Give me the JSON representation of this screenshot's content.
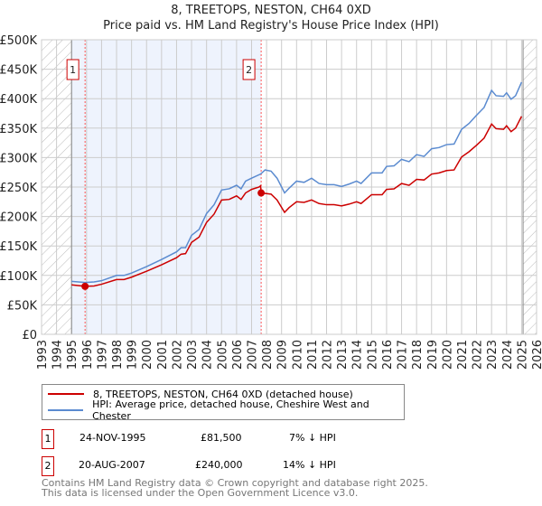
{
  "title": "8, TREETOPS, NESTON, CH64 0XD",
  "subtitle": "Price paid vs. HM Land Registry's House Price Index (HPI)",
  "chart_data": {
    "type": "line",
    "xlim": [
      1993,
      2026
    ],
    "ylim": [
      0,
      500000
    ],
    "yticks": [
      {
        "v": 0,
        "l": "£0"
      },
      {
        "v": 50000,
        "l": "£50K"
      },
      {
        "v": 100000,
        "l": "£100K"
      },
      {
        "v": 150000,
        "l": "£150K"
      },
      {
        "v": 200000,
        "l": "£200K"
      },
      {
        "v": 250000,
        "l": "£250K"
      },
      {
        "v": 300000,
        "l": "£300K"
      },
      {
        "v": 350000,
        "l": "£350K"
      },
      {
        "v": 400000,
        "l": "£400K"
      },
      {
        "v": 450000,
        "l": "£450K"
      },
      {
        "v": 500000,
        "l": "£500K"
      }
    ],
    "xticks": [
      "1993",
      "1994",
      "1995",
      "1996",
      "1997",
      "1998",
      "1999",
      "2000",
      "2001",
      "2002",
      "2003",
      "2004",
      "2005",
      "2006",
      "2007",
      "2008",
      "2009",
      "2010",
      "2011",
      "2012",
      "2013",
      "2014",
      "2015",
      "2016",
      "2017",
      "2018",
      "2019",
      "2020",
      "2021",
      "2022",
      "2023",
      "2024",
      "2025",
      "2026"
    ],
    "shaded_range": [
      1995.0,
      2007.64
    ],
    "hatched_ranges": [
      [
        1993,
        1995.0
      ],
      [
        2025.1,
        2026
      ]
    ],
    "series": [
      {
        "name": "8, TREETOPS, NESTON, CH64 0XD (detached house)",
        "color": "#cc0000",
        "points": [
          [
            1995,
            84000
          ],
          [
            1995.9,
            81500
          ],
          [
            1996.5,
            82000
          ],
          [
            1997,
            85000
          ],
          [
            1998,
            93000
          ],
          [
            1998.5,
            93000
          ],
          [
            1999,
            97000
          ],
          [
            2000,
            107000
          ],
          [
            2001,
            118000
          ],
          [
            2002,
            130000
          ],
          [
            2002.3,
            136000
          ],
          [
            2002.6,
            137000
          ],
          [
            2003,
            156000
          ],
          [
            2003.5,
            165000
          ],
          [
            2004,
            190000
          ],
          [
            2004.5,
            204000
          ],
          [
            2005,
            228000
          ],
          [
            2005.5,
            229000
          ],
          [
            2006,
            235000
          ],
          [
            2006.3,
            229000
          ],
          [
            2006.6,
            240000
          ],
          [
            2007,
            246000
          ],
          [
            2007.5,
            250000
          ],
          [
            2007.6,
            252000
          ],
          [
            2007.64,
            240000
          ],
          [
            2008.3,
            238000
          ],
          [
            2008.7,
            228000
          ],
          [
            2009.2,
            207000
          ],
          [
            2009.5,
            215000
          ],
          [
            2010,
            225000
          ],
          [
            2010.5,
            224000
          ],
          [
            2011,
            228000
          ],
          [
            2011.5,
            222000
          ],
          [
            2012,
            220000
          ],
          [
            2012.5,
            220000
          ],
          [
            2013,
            218000
          ],
          [
            2013.5,
            221000
          ],
          [
            2014,
            225000
          ],
          [
            2014.3,
            222000
          ],
          [
            2015,
            237000
          ],
          [
            2015.7,
            237000
          ],
          [
            2016,
            246000
          ],
          [
            2016.5,
            247000
          ],
          [
            2017,
            256000
          ],
          [
            2017.5,
            253000
          ],
          [
            2018,
            263000
          ],
          [
            2018.5,
            262000
          ],
          [
            2019,
            272000
          ],
          [
            2019.5,
            274000
          ],
          [
            2020,
            278000
          ],
          [
            2020.5,
            279000
          ],
          [
            2021,
            301000
          ],
          [
            2021.5,
            310000
          ],
          [
            2022,
            321000
          ],
          [
            2022.5,
            333000
          ],
          [
            2023,
            357000
          ],
          [
            2023.3,
            349000
          ],
          [
            2023.8,
            348000
          ],
          [
            2024,
            354000
          ],
          [
            2024.3,
            344000
          ],
          [
            2024.6,
            350000
          ],
          [
            2025,
            370000
          ]
        ]
      },
      {
        "name": "HPI: Average price, detached house, Cheshire West and Chester",
        "color": "#5b8bd0",
        "points": [
          [
            1995,
            90000
          ],
          [
            1995.9,
            88000
          ],
          [
            1996.5,
            89000
          ],
          [
            1997,
            91000
          ],
          [
            1998,
            100000
          ],
          [
            1998.5,
            100000
          ],
          [
            1999,
            104000
          ],
          [
            2000,
            115000
          ],
          [
            2001,
            127000
          ],
          [
            2002,
            140000
          ],
          [
            2002.3,
            147000
          ],
          [
            2002.6,
            147000
          ],
          [
            2003,
            168000
          ],
          [
            2003.5,
            178000
          ],
          [
            2004,
            205000
          ],
          [
            2004.5,
            220000
          ],
          [
            2005,
            245000
          ],
          [
            2005.5,
            247000
          ],
          [
            2006,
            253000
          ],
          [
            2006.3,
            247000
          ],
          [
            2006.6,
            260000
          ],
          [
            2007,
            265000
          ],
          [
            2007.6,
            272000
          ],
          [
            2007.9,
            279000
          ],
          [
            2008.3,
            277000
          ],
          [
            2008.7,
            265000
          ],
          [
            2009.2,
            240000
          ],
          [
            2009.5,
            248000
          ],
          [
            2010,
            260000
          ],
          [
            2010.5,
            258000
          ],
          [
            2011,
            265000
          ],
          [
            2011.5,
            256000
          ],
          [
            2012,
            254000
          ],
          [
            2012.5,
            254000
          ],
          [
            2013,
            251000
          ],
          [
            2013.5,
            255000
          ],
          [
            2014,
            260000
          ],
          [
            2014.3,
            256000
          ],
          [
            2015,
            274000
          ],
          [
            2015.7,
            274000
          ],
          [
            2016,
            285000
          ],
          [
            2016.5,
            286000
          ],
          [
            2017,
            297000
          ],
          [
            2017.5,
            293000
          ],
          [
            2018,
            305000
          ],
          [
            2018.5,
            302000
          ],
          [
            2019,
            315000
          ],
          [
            2019.5,
            317000
          ],
          [
            2020,
            322000
          ],
          [
            2020.5,
            323000
          ],
          [
            2021,
            348000
          ],
          [
            2021.5,
            358000
          ],
          [
            2022,
            372000
          ],
          [
            2022.5,
            385000
          ],
          [
            2023,
            414000
          ],
          [
            2023.3,
            405000
          ],
          [
            2023.8,
            404000
          ],
          [
            2024,
            410000
          ],
          [
            2024.3,
            399000
          ],
          [
            2024.6,
            405000
          ],
          [
            2025,
            428000
          ]
        ]
      }
    ],
    "markers": [
      {
        "label": "1",
        "x": 1995.9,
        "y": 81500
      },
      {
        "label": "2",
        "x": 2007.64,
        "y": 240000
      }
    ]
  },
  "transactions": [
    {
      "num": "1",
      "date": "24-NOV-1995",
      "price": "£81,500",
      "hpi": "7% ↓ HPI"
    },
    {
      "num": "2",
      "date": "20-AUG-2007",
      "price": "£240,000",
      "hpi": "14% ↓ HPI"
    }
  ],
  "footer": {
    "line1": "Contains HM Land Registry data © Crown copyright and database right 2025.",
    "line2": "This data is licensed under the Open Government Licence v3.0."
  }
}
